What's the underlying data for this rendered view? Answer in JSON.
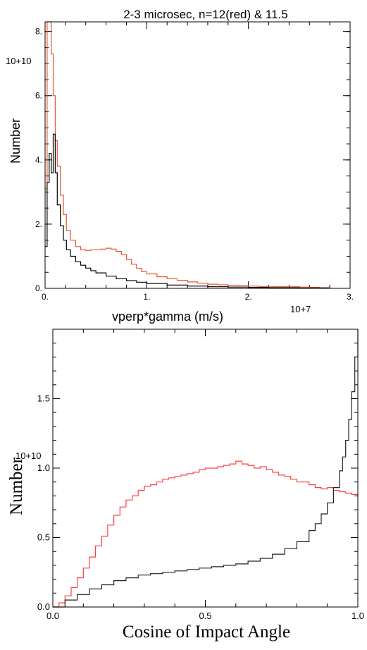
{
  "chart_data": [
    {
      "type": "line",
      "title": "2-3 microsec, n=12(red) & 11.5",
      "xlabel": "vperp*gamma (m/s)",
      "ylabel": "Number",
      "x_multiplier_label": "10+7",
      "y_multiplier_label": "10+10",
      "xlim": [
        0,
        3
      ],
      "ylim": [
        0,
        8.3
      ],
      "xticks": [
        0,
        1,
        2,
        3
      ],
      "xtick_labels": [
        "0.",
        "1.",
        "2.",
        "3."
      ],
      "yticks": [
        0,
        2,
        4,
        6,
        8
      ],
      "ytick_labels": [
        "0.",
        "2.",
        "4.",
        "6.",
        "8."
      ],
      "step": true,
      "series": [
        {
          "color": "#e8552e",
          "x": [
            0.0,
            0.02,
            0.04,
            0.06,
            0.08,
            0.1,
            0.12,
            0.15,
            0.18,
            0.21,
            0.25,
            0.3,
            0.35,
            0.4,
            0.45,
            0.5,
            0.55,
            0.6,
            0.65,
            0.7,
            0.75,
            0.8,
            0.85,
            0.9,
            0.95,
            1.0,
            1.1,
            1.2,
            1.3,
            1.4,
            1.5,
            1.6,
            1.7,
            1.8,
            1.9,
            2.0,
            2.1,
            2.2,
            2.3,
            2.4,
            2.5,
            2.6,
            2.7,
            2.8
          ],
          "y": [
            3.1,
            9.0,
            9.0,
            7.3,
            6.0,
            4.6,
            3.8,
            2.9,
            2.3,
            1.8,
            1.5,
            1.3,
            1.2,
            1.18,
            1.2,
            1.2,
            1.22,
            1.25,
            1.22,
            1.15,
            1.05,
            0.9,
            0.75,
            0.62,
            0.52,
            0.45,
            0.36,
            0.3,
            0.25,
            0.2,
            0.16,
            0.13,
            0.11,
            0.09,
            0.08,
            0.07,
            0.06,
            0.05,
            0.05,
            0.05,
            0.04,
            0.03,
            0.02,
            0.0
          ]
        },
        {
          "color": "#000000",
          "x": [
            0.0,
            0.02,
            0.04,
            0.06,
            0.08,
            0.1,
            0.12,
            0.15,
            0.18,
            0.21,
            0.25,
            0.3,
            0.35,
            0.4,
            0.45,
            0.5,
            0.6,
            0.7,
            0.8,
            0.9,
            1.0,
            1.2,
            1.4,
            1.6,
            1.8,
            2.0,
            2.2,
            2.5,
            2.8
          ],
          "y": [
            1.3,
            3.3,
            4.2,
            3.6,
            4.8,
            3.6,
            2.6,
            1.95,
            1.5,
            1.2,
            1.0,
            0.83,
            0.72,
            0.63,
            0.55,
            0.48,
            0.38,
            0.3,
            0.24,
            0.19,
            0.15,
            0.1,
            0.07,
            0.05,
            0.04,
            0.03,
            0.02,
            0.01,
            0.0
          ]
        }
      ]
    },
    {
      "type": "line",
      "xlabel": "Cosine of Impact Angle",
      "ylabel": "Number",
      "y_multiplier_label": "10+10",
      "xlim": [
        0,
        1
      ],
      "ylim": [
        0,
        2.0
      ],
      "xticks": [
        0,
        0.5,
        1.0
      ],
      "xtick_labels": [
        "0.0",
        "0.5",
        "1.0"
      ],
      "yticks": [
        0,
        0.5,
        1.0,
        1.5
      ],
      "ytick_labels": [
        "0.0",
        "0.5",
        "1.0",
        "1.5"
      ],
      "step": true,
      "series": [
        {
          "color": "#ff4040",
          "x": [
            0.0,
            0.02,
            0.04,
            0.06,
            0.08,
            0.1,
            0.12,
            0.14,
            0.16,
            0.18,
            0.2,
            0.22,
            0.24,
            0.26,
            0.28,
            0.3,
            0.32,
            0.34,
            0.36,
            0.38,
            0.4,
            0.42,
            0.44,
            0.46,
            0.48,
            0.5,
            0.52,
            0.54,
            0.56,
            0.58,
            0.6,
            0.62,
            0.64,
            0.66,
            0.68,
            0.7,
            0.72,
            0.74,
            0.76,
            0.78,
            0.8,
            0.82,
            0.84,
            0.86,
            0.88,
            0.9,
            0.92,
            0.94,
            0.96,
            0.98,
            1.0
          ],
          "y": [
            0.0,
            0.03,
            0.08,
            0.14,
            0.21,
            0.28,
            0.36,
            0.44,
            0.51,
            0.59,
            0.66,
            0.72,
            0.77,
            0.8,
            0.84,
            0.87,
            0.88,
            0.9,
            0.92,
            0.93,
            0.94,
            0.95,
            0.96,
            0.97,
            0.99,
            1.0,
            1.0,
            1.01,
            1.02,
            1.03,
            1.05,
            1.03,
            1.02,
            1.0,
            1.01,
            0.99,
            0.97,
            0.95,
            0.94,
            0.92,
            0.9,
            0.9,
            0.88,
            0.86,
            0.85,
            0.86,
            0.84,
            0.83,
            0.82,
            0.81,
            0.8
          ]
        },
        {
          "color": "#222222",
          "x": [
            0.0,
            0.04,
            0.08,
            0.12,
            0.16,
            0.2,
            0.24,
            0.28,
            0.32,
            0.36,
            0.4,
            0.44,
            0.48,
            0.52,
            0.56,
            0.6,
            0.64,
            0.68,
            0.72,
            0.76,
            0.8,
            0.84,
            0.86,
            0.88,
            0.9,
            0.92,
            0.94,
            0.95,
            0.96,
            0.97,
            0.98,
            0.99,
            1.0
          ],
          "y": [
            0.0,
            0.05,
            0.09,
            0.13,
            0.16,
            0.19,
            0.21,
            0.23,
            0.24,
            0.25,
            0.26,
            0.27,
            0.28,
            0.29,
            0.3,
            0.31,
            0.33,
            0.35,
            0.38,
            0.42,
            0.47,
            0.55,
            0.6,
            0.67,
            0.75,
            0.86,
            0.98,
            1.08,
            1.2,
            1.35,
            1.55,
            1.8,
            2.0
          ]
        }
      ]
    }
  ]
}
